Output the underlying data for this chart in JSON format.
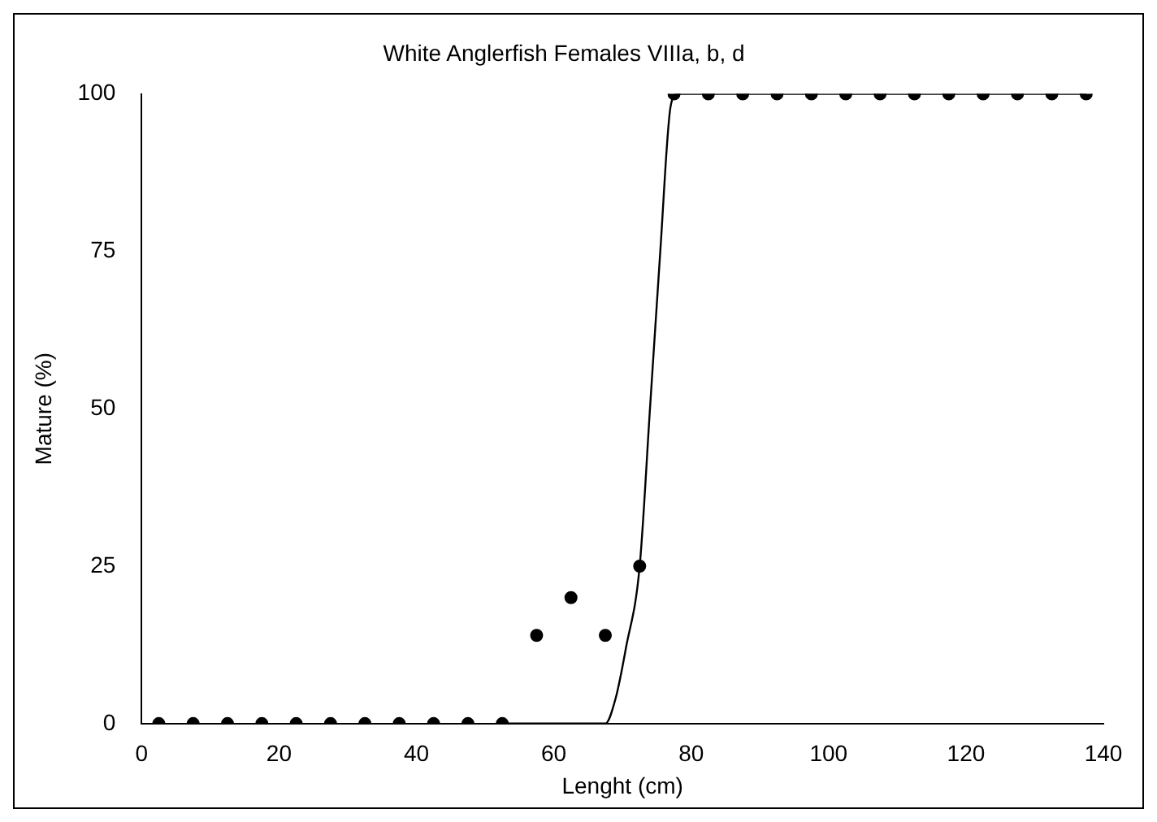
{
  "chart_data": {
    "type": "scatter",
    "title": "White Anglerfish Females VIIIa, b, d",
    "xlabel": "Lenght (cm)",
    "ylabel": "Mature (%)",
    "xlim": [
      0,
      140
    ],
    "xticks": [
      0,
      20,
      40,
      60,
      80,
      100,
      120,
      140
    ],
    "ylim": [
      0,
      100
    ],
    "yticks": [
      0,
      25,
      50,
      75,
      100
    ],
    "grid": false,
    "legend": false,
    "series": [
      {
        "color": "#000000",
        "marker": "circle",
        "x": [
          2.5,
          7.5,
          12.5,
          17.5,
          22.5,
          27.5,
          32.5,
          37.5,
          42.5,
          47.5,
          52.5,
          57.5,
          62.5,
          67.5,
          72.5,
          77.5,
          82.5,
          87.5,
          92.5,
          97.5,
          102.5,
          107.5,
          112.5,
          117.5,
          122.5,
          127.5,
          132.5,
          137.5
        ],
        "values": [
          0,
          0,
          0,
          0,
          0,
          0,
          0,
          0,
          0,
          0,
          0,
          14,
          20,
          14,
          25,
          100,
          100,
          100,
          100,
          100,
          100,
          100,
          100,
          100,
          100,
          100,
          100,
          100
        ]
      },
      {
        "type": "line",
        "color": "#000000",
        "marker": "none",
        "line_style": "solid",
        "x": [
          52.5,
          67.5,
          69,
          70.5,
          72.5,
          74,
          75.5,
          77,
          78,
          137.5
        ],
        "values": [
          0,
          0,
          4,
          12,
          25,
          50,
          75,
          98,
          100,
          100
        ]
      }
    ]
  }
}
